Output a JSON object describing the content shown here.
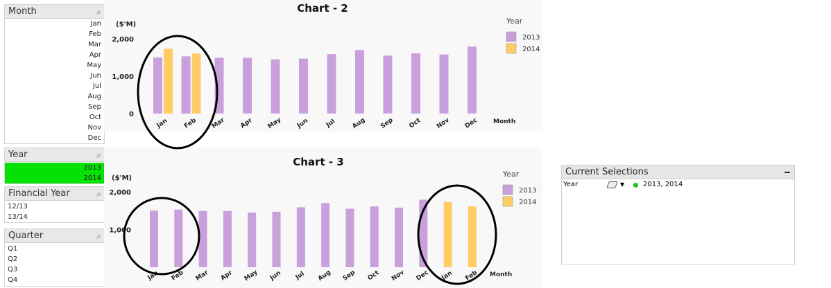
{
  "month_box": {
    "title": "Month",
    "items": [
      "Jan",
      "Feb",
      "Mar",
      "Apr",
      "May",
      "Jun",
      "Jul",
      "Aug",
      "Sep",
      "Oct",
      "Nov",
      "Dec"
    ]
  },
  "year_box": {
    "title": "Year",
    "items": [
      "2013",
      "2014"
    ]
  },
  "fy_box": {
    "title": "Financial Year",
    "items": [
      "12/13",
      "13/14"
    ]
  },
  "quarter_box": {
    "title": "Quarter",
    "items": [
      "Q1",
      "Q2",
      "Q3",
      "Q4"
    ]
  },
  "current_selections": {
    "title": "Current Selections",
    "field": "Year",
    "values": "2013, 2014"
  },
  "colors": {
    "s2013": "#c9a0dc",
    "s2014": "#ffcc66",
    "selected": "#05e005"
  },
  "chart_data": [
    {
      "type": "bar",
      "title": "Chart - 2",
      "ylabel": "($'M)",
      "xlabel": "Month",
      "legend_title": "Year",
      "categories": [
        "Jan",
        "Feb",
        "Mar",
        "Apr",
        "May",
        "Jun",
        "Jul",
        "Aug",
        "Sep",
        "Oct",
        "Nov",
        "Dec"
      ],
      "yticks": [
        "0",
        "1,000",
        "2,000"
      ],
      "ylim": [
        0,
        2000
      ],
      "series": [
        {
          "name": "2013",
          "values": [
            1500,
            1530,
            1490,
            1490,
            1450,
            1470,
            1590,
            1700,
            1550,
            1610,
            1580,
            1790
          ]
        },
        {
          "name": "2014",
          "values": [
            1730,
            1610,
            null,
            null,
            null,
            null,
            null,
            null,
            null,
            null,
            null,
            null
          ]
        }
      ]
    },
    {
      "type": "bar",
      "title": "Chart - 3",
      "ylabel": "($'M)",
      "xlabel": "Month",
      "legend_title": "Year",
      "categories": [
        "Jan",
        "Feb",
        "Mar",
        "Apr",
        "May",
        "Jun",
        "Jul",
        "Aug",
        "Sep",
        "Oct",
        "Nov",
        "Dec",
        "Jan",
        "Feb"
      ],
      "yticks": [
        "1,000",
        "2,000"
      ],
      "ylim": [
        0,
        2000
      ],
      "series": [
        {
          "name": "2013",
          "values": [
            1500,
            1530,
            1490,
            1490,
            1450,
            1470,
            1590,
            1700,
            1550,
            1610,
            1580,
            1790,
            null,
            null
          ]
        },
        {
          "name": "2014",
          "values": [
            null,
            null,
            null,
            null,
            null,
            null,
            null,
            null,
            null,
            null,
            null,
            null,
            1730,
            1610
          ]
        }
      ]
    }
  ]
}
